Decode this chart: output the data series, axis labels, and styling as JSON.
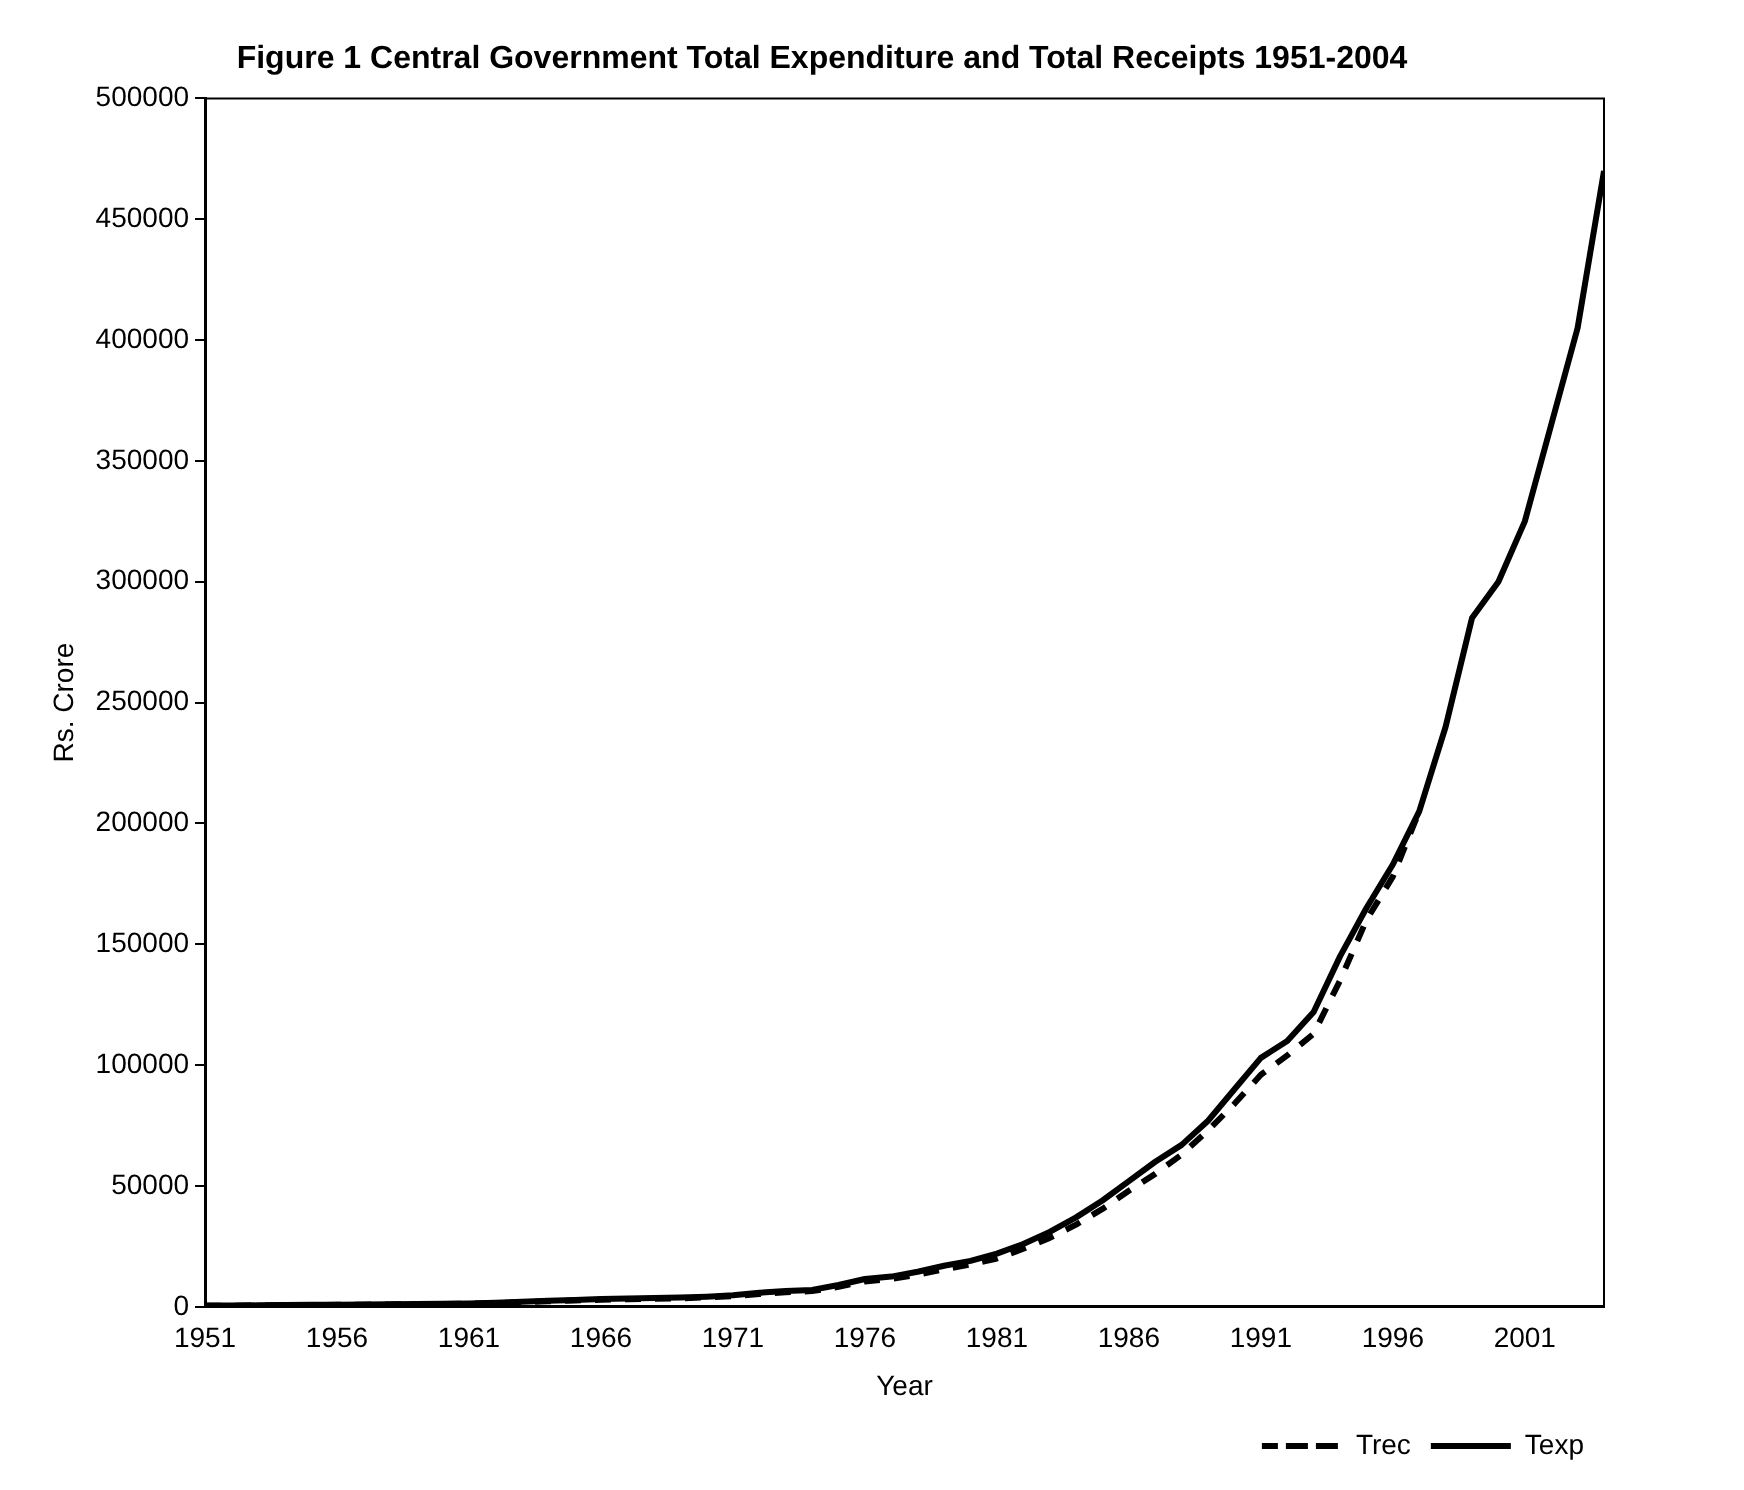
{
  "chart_data": {
    "type": "line",
    "title": "Figure 1 Central Government Total Expenditure and Total Receipts 1951-2004",
    "xlabel": "Year",
    "ylabel": "Rs. Crore",
    "x": [
      1951,
      1952,
      1953,
      1954,
      1955,
      1956,
      1957,
      1958,
      1959,
      1960,
      1961,
      1962,
      1963,
      1964,
      1965,
      1966,
      1967,
      1968,
      1969,
      1970,
      1971,
      1972,
      1973,
      1974,
      1975,
      1976,
      1977,
      1978,
      1979,
      1980,
      1981,
      1982,
      1983,
      1984,
      1985,
      1986,
      1987,
      1988,
      1989,
      1990,
      1991,
      1992,
      1993,
      1994,
      1995,
      1996,
      1997,
      1998,
      1999,
      2000,
      2001,
      2002,
      2003,
      2004
    ],
    "series": [
      {
        "name": "Trec",
        "color": "#000000",
        "line_style": "dashed",
        "values": [
          450,
          450,
          550,
          650,
          700,
          800,
          900,
          1000,
          1100,
          1200,
          1300,
          1500,
          1900,
          2300,
          2600,
          2900,
          3100,
          3300,
          3500,
          3900,
          4400,
          5300,
          6000,
          6500,
          8300,
          10500,
          11500,
          13300,
          15500,
          17500,
          20000,
          24000,
          28500,
          34000,
          40500,
          48000,
          55000,
          63000,
          73000,
          84000,
          96000,
          104000,
          113000,
          135000,
          160000,
          178000,
          205000,
          null,
          null,
          null,
          null,
          null,
          null,
          null
        ]
      },
      {
        "name": "Texp",
        "color": "#000000",
        "line_style": "solid",
        "values": [
          500,
          500,
          600,
          700,
          800,
          900,
          1000,
          1100,
          1200,
          1300,
          1400,
          1700,
          2100,
          2500,
          2800,
          3200,
          3400,
          3600,
          3800,
          4200,
          4800,
          5800,
          6500,
          7000,
          9000,
          11500,
          12500,
          14500,
          17000,
          19000,
          22000,
          26000,
          31000,
          37000,
          44000,
          52000,
          60000,
          67000,
          77000,
          90000,
          103000,
          110000,
          122000,
          145000,
          165000,
          183000,
          205000,
          240000,
          285000,
          300000,
          325000,
          365000,
          405000,
          470000
        ]
      }
    ],
    "xlim": [
      1951,
      2004
    ],
    "xticks": [
      1951,
      1956,
      1961,
      1966,
      1971,
      1976,
      1981,
      1986,
      1991,
      1996,
      2001
    ],
    "ylim": [
      0,
      500000
    ],
    "yticks": [
      0,
      50000,
      100000,
      150000,
      200000,
      250000,
      300000,
      350000,
      400000,
      450000,
      500000
    ],
    "grid": false,
    "legend": "bottom right",
    "marker": "none"
  }
}
